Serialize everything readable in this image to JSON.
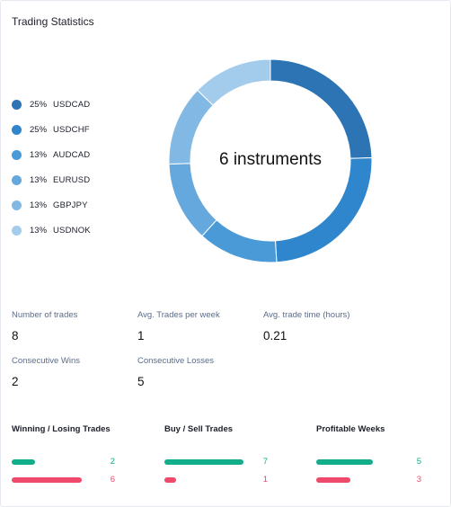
{
  "title": "Trading Statistics",
  "legend": [
    {
      "pct": "25%",
      "name": "USDCAD",
      "color": "#2c74b3"
    },
    {
      "pct": "25%",
      "name": "USDCHF",
      "color": "#2f86cc"
    },
    {
      "pct": "13%",
      "name": "AUDCAD",
      "color": "#4b9ad8"
    },
    {
      "pct": "13%",
      "name": "EURUSD",
      "color": "#64a8de"
    },
    {
      "pct": "13%",
      "name": "GBPJPY",
      "color": "#82b9e4"
    },
    {
      "pct": "13%",
      "name": "USDNOK",
      "color": "#a3cbec"
    }
  ],
  "donut": {
    "center_label": "6 instruments",
    "slices": [
      {
        "name": "USDCAD",
        "value": 25,
        "color": "#2c74b3"
      },
      {
        "name": "USDCHF",
        "value": 25,
        "color": "#2f86cc"
      },
      {
        "name": "AUDCAD",
        "value": 13,
        "color": "#4b9ad8"
      },
      {
        "name": "EURUSD",
        "value": 13,
        "color": "#64a8de"
      },
      {
        "name": "GBPJPY",
        "value": 13,
        "color": "#82b9e4"
      },
      {
        "name": "USDNOK",
        "value": 13,
        "color": "#a3cbec"
      }
    ]
  },
  "stats": {
    "number_of_trades": {
      "label": "Number of trades",
      "value": "8"
    },
    "avg_trades_per_week": {
      "label": "Avg. Trades per week",
      "value": "1"
    },
    "avg_trade_time": {
      "label": "Avg. trade time (hours)",
      "value": "0.21"
    },
    "consecutive_wins": {
      "label": "Consecutive Wins",
      "value": "2"
    },
    "consecutive_losses": {
      "label": "Consecutive Losses",
      "value": "5"
    }
  },
  "sections": {
    "winning_losing": {
      "title": "Winning / Losing Trades",
      "win": "2",
      "loss": "6",
      "win_fraction": 0.25,
      "loss_fraction": 0.75
    },
    "buy_sell": {
      "title": "Buy / Sell Trades",
      "buy": "7",
      "sell": "1",
      "buy_fraction": 0.875,
      "sell_fraction": 0.125
    },
    "profitable_weeks": {
      "title": "Profitable Weeks",
      "profitable": "5",
      "unprofitable": "3",
      "profitable_fraction": 0.625,
      "unprofitable_fraction": 0.375
    }
  },
  "colors": {
    "win": "#12ad8a",
    "loss": "#ef4a6b"
  }
}
